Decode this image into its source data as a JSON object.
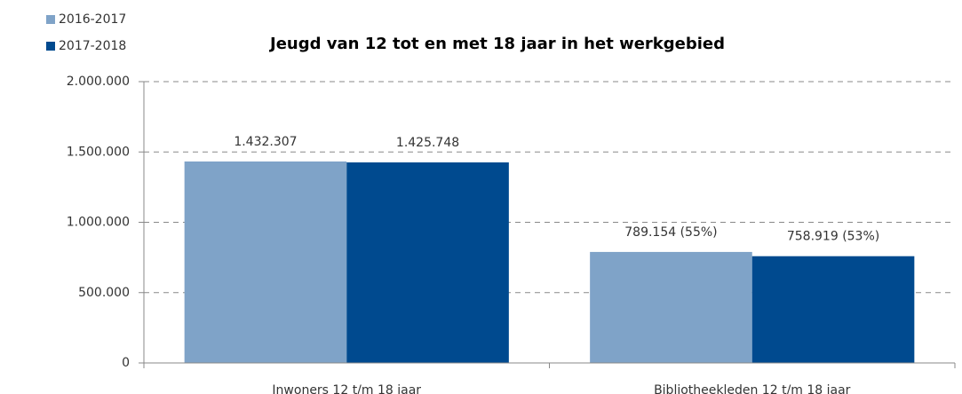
{
  "chart_data": {
    "type": "bar",
    "title": "Jeugd van 12 tot en met 18 jaar in het werkgebied",
    "categories": [
      "Inwoners 12 t/m 18 jaar",
      "Bibliotheekleden 12 t/m 18 jaar"
    ],
    "series": [
      {
        "name": "2016-2017",
        "color": "#7fa3c8",
        "values": [
          1432307,
          789154
        ],
        "value_labels": [
          "1.432.307",
          "789.154 (55%)"
        ]
      },
      {
        "name": "2017-2018",
        "color": "#004a8f",
        "values": [
          1425748,
          758919
        ],
        "value_labels": [
          "1.425.748",
          "758.919 (53%)"
        ]
      }
    ],
    "ylim": [
      0,
      2000000
    ],
    "yticks": [
      0,
      {
        "value": 500000,
        "label": "500.000"
      },
      {
        "value": 1000000,
        "label": "1.000.000"
      },
      {
        "value": 1500000,
        "label": "1.500.000"
      },
      {
        "value": 2000000,
        "label": "2.000.000"
      }
    ],
    "grid": true,
    "legend": "top-left"
  }
}
